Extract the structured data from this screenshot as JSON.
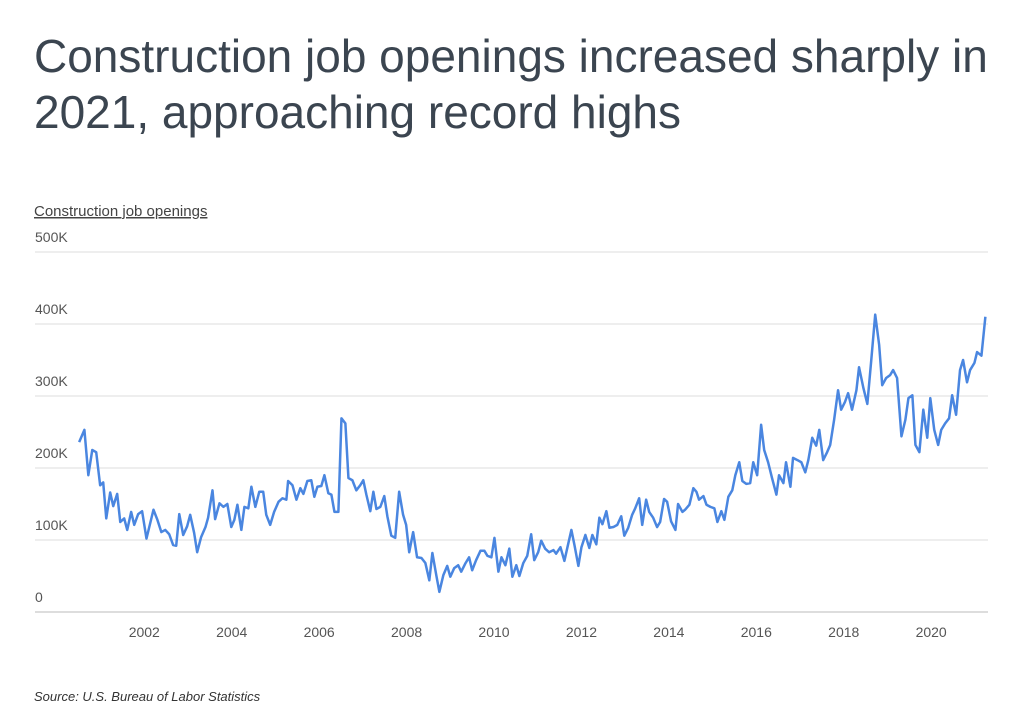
{
  "chart_data": {
    "type": "line",
    "title": "Construction job openings increased sharply in 2021, approaching record highs",
    "ylabel": "Construction job openings",
    "source": "Source:  U.S. Bureau of Labor Statistics",
    "color": "#4a86e0",
    "xlim": [
      1999.5,
      2021.3
    ],
    "xticks": [
      2002,
      2004,
      2006,
      2008,
      2010,
      2012,
      2014,
      2016,
      2018,
      2020
    ],
    "ylim": [
      0,
      500000
    ],
    "yticks": [
      0,
      {
        "value": 100000,
        "label": "100K"
      },
      {
        "value": 200000,
        "label": "200K"
      },
      {
        "value": 300000,
        "label": "300K"
      },
      {
        "value": 400000,
        "label": "400K"
      },
      {
        "value": 500000,
        "label": "500K"
      }
    ],
    "grid": true,
    "x": [
      2000.51,
      2000.63,
      2000.72,
      2000.81,
      2000.9,
      2000.99,
      2001.06,
      2001.13,
      2001.22,
      2001.29,
      2001.38,
      2001.45,
      2001.54,
      2001.61,
      2001.7,
      2001.77,
      2001.86,
      2001.95,
      2002.05,
      2002.11,
      2002.21,
      2002.3,
      2002.39,
      2002.48,
      2002.57,
      2002.66,
      2002.73,
      2002.8,
      2002.89,
      2002.98,
      2003.05,
      2003.14,
      2003.21,
      2003.3,
      2003.4,
      2003.46,
      2003.56,
      2003.62,
      2003.72,
      2003.81,
      2003.9,
      2003.99,
      2004.06,
      2004.13,
      2004.22,
      2004.29,
      2004.38,
      2004.45,
      2004.54,
      2004.63,
      2004.72,
      2004.79,
      2004.88,
      2004.97,
      2005.07,
      2005.16,
      2005.25,
      2005.29,
      2005.39,
      2005.48,
      2005.57,
      2005.64,
      2005.73,
      2005.82,
      2005.89,
      2005.96,
      2006.05,
      2006.12,
      2006.21,
      2006.28,
      2006.35,
      2006.44,
      2006.51,
      2006.6,
      2006.67,
      2006.76,
      2006.85,
      2006.94,
      2007.01,
      2007.08,
      2007.17,
      2007.24,
      2007.31,
      2007.4,
      2007.49,
      2007.56,
      2007.65,
      2007.74,
      2007.83,
      2007.92,
      2007.99,
      2008.06,
      2008.15,
      2008.24,
      2008.34,
      2008.43,
      2008.52,
      2008.59,
      2008.68,
      2008.75,
      2008.84,
      2008.93,
      2009.0,
      2009.09,
      2009.18,
      2009.25,
      2009.34,
      2009.43,
      2009.5,
      2009.59,
      2009.69,
      2009.78,
      2009.85,
      2009.94,
      2010.01,
      2010.1,
      2010.17,
      2010.26,
      2010.35,
      2010.42,
      2010.51,
      2010.58,
      2010.67,
      2010.76,
      2010.85,
      2010.92,
      2011.01,
      2011.08,
      2011.17,
      2011.26,
      2011.36,
      2011.42,
      2011.52,
      2011.61,
      2011.68,
      2011.77,
      2011.84,
      2011.93,
      2012.0,
      2012.09,
      2012.18,
      2012.25,
      2012.34,
      2012.41,
      2012.48,
      2012.57,
      2012.64,
      2012.73,
      2012.82,
      2012.91,
      2012.98,
      2013.07,
      2013.16,
      2013.23,
      2013.32,
      2013.39,
      2013.48,
      2013.55,
      2013.64,
      2013.73,
      2013.8,
      2013.89,
      2013.96,
      2014.05,
      2014.15,
      2014.21,
      2014.31,
      2014.37,
      2014.47,
      2014.56,
      2014.63,
      2014.69,
      2014.79,
      2014.86,
      2014.95,
      2015.04,
      2015.11,
      2015.2,
      2015.27,
      2015.36,
      2015.45,
      2015.52,
      2015.61,
      2015.68,
      2015.77,
      2015.86,
      2015.93,
      2016.02,
      2016.11,
      2016.18,
      2016.27,
      2016.36,
      2016.46,
      2016.52,
      2016.62,
      2016.68,
      2016.78,
      2016.84,
      2016.94,
      2017.03,
      2017.12,
      2017.19,
      2017.28,
      2017.37,
      2017.44,
      2017.53,
      2017.62,
      2017.69,
      2017.78,
      2017.87,
      2017.94,
      2018.03,
      2018.1,
      2018.19,
      2018.29,
      2018.35,
      2018.45,
      2018.54,
      2018.63,
      2018.72,
      2018.81,
      2018.88,
      2018.97,
      2019.06,
      2019.13,
      2019.22,
      2019.32,
      2019.41,
      2019.48,
      2019.57,
      2019.64,
      2019.73,
      2019.82,
      2019.91,
      2019.98,
      2020.07,
      2020.16,
      2020.23,
      2020.32,
      2020.41,
      2020.48,
      2020.57,
      2020.66,
      2020.73,
      2020.82,
      2020.89,
      2020.99,
      2021.05,
      2021.15,
      2021.24
    ],
    "values": [
      236000,
      253000,
      190000,
      225000,
      222000,
      176000,
      180000,
      130000,
      166000,
      147000,
      164000,
      125000,
      130000,
      114000,
      139000,
      121000,
      136000,
      140000,
      102000,
      117000,
      142000,
      128000,
      111000,
      114000,
      108000,
      93000,
      92000,
      136000,
      107000,
      119000,
      135000,
      110000,
      83000,
      104000,
      118000,
      131000,
      169000,
      129000,
      151000,
      146000,
      150000,
      118000,
      128000,
      149000,
      114000,
      146000,
      144000,
      174000,
      146000,
      167000,
      167000,
      135000,
      121000,
      139000,
      153000,
      158000,
      156000,
      182000,
      176000,
      156000,
      172000,
      164000,
      182000,
      183000,
      160000,
      174000,
      175000,
      190000,
      165000,
      163000,
      139000,
      139000,
      269000,
      262000,
      186000,
      183000,
      169000,
      176000,
      183000,
      163000,
      140000,
      167000,
      143000,
      146000,
      161000,
      133000,
      106000,
      103000,
      167000,
      135000,
      121000,
      83000,
      111000,
      76000,
      75000,
      68000,
      44000,
      82000,
      51000,
      28000,
      51000,
      64000,
      49000,
      61000,
      65000,
      56000,
      67000,
      76000,
      58000,
      72000,
      85000,
      85000,
      78000,
      76000,
      103000,
      56000,
      76000,
      65000,
      88000,
      49000,
      65000,
      50000,
      68000,
      78000,
      108000,
      72000,
      83000,
      99000,
      88000,
      83000,
      86000,
      81000,
      90000,
      71000,
      90000,
      114000,
      93000,
      64000,
      90000,
      107000,
      89000,
      107000,
      94000,
      131000,
      122000,
      140000,
      117000,
      118000,
      121000,
      133000,
      106000,
      117000,
      135000,
      144000,
      158000,
      121000,
      156000,
      139000,
      131000,
      118000,
      125000,
      157000,
      153000,
      126000,
      114000,
      150000,
      139000,
      142000,
      149000,
      172000,
      167000,
      156000,
      161000,
      149000,
      146000,
      144000,
      125000,
      140000,
      128000,
      160000,
      169000,
      190000,
      208000,
      182000,
      178000,
      179000,
      208000,
      190000,
      260000,
      225000,
      208000,
      186000,
      163000,
      190000,
      179000,
      208000,
      174000,
      214000,
      211000,
      208000,
      194000,
      211000,
      242000,
      231000,
      253000,
      211000,
      222000,
      232000,
      267000,
      308000,
      281000,
      292000,
      304000,
      281000,
      308000,
      340000,
      311000,
      289000,
      350000,
      413000,
      371000,
      315000,
      325000,
      329000,
      336000,
      325000,
      244000,
      267000,
      297000,
      301000,
      232000,
      222000,
      281000,
      242000,
      297000,
      253000,
      232000,
      253000,
      262000,
      269000,
      301000,
      274000,
      336000,
      350000,
      319000,
      336000,
      346000,
      361000,
      356000,
      410000
    ]
  }
}
